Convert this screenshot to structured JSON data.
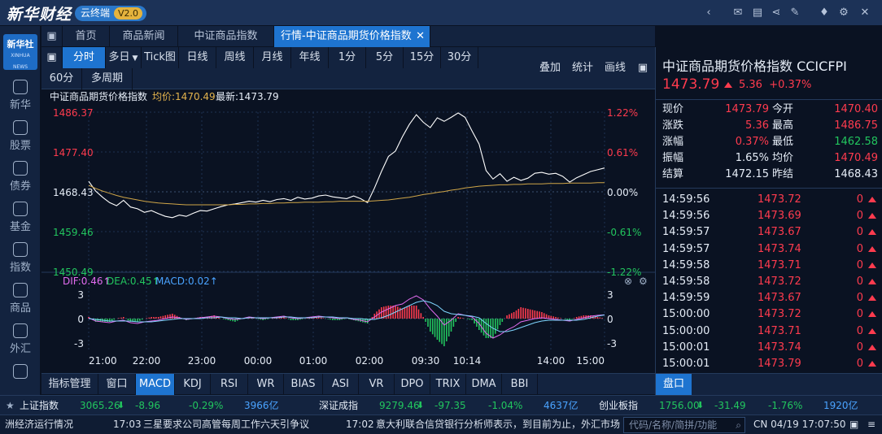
{
  "app": {
    "logo": "新华财经",
    "cloud_label": "云终端",
    "version": "V2.0"
  },
  "titlebar_icons": [
    "back-icon",
    "mail-icon",
    "chat-icon",
    "share-icon",
    "note-icon",
    "shirt-icon",
    "gear-icon",
    "close-icon"
  ],
  "sidebar": {
    "logo_main": "新华社",
    "logo_sub": "XINHUA NEWS",
    "items": [
      {
        "label": "新华",
        "icon": "xinhua-icon"
      },
      {
        "label": "股票",
        "icon": "stock-icon"
      },
      {
        "label": "债券",
        "icon": "bond-icon"
      },
      {
        "label": "基金",
        "icon": "fund-icon"
      },
      {
        "label": "指数",
        "icon": "index-icon"
      },
      {
        "label": "商品",
        "icon": "commodity-icon"
      },
      {
        "label": "外汇",
        "icon": "forex-icon"
      },
      {
        "label": "",
        "icon": "more-icon"
      }
    ]
  },
  "tabs": [
    {
      "label": "首页"
    },
    {
      "label": "商品新闻"
    },
    {
      "label": "中证商品指数"
    },
    {
      "label": "行情-中证商品期货价格指数"
    }
  ],
  "toolbar": {
    "periods": [
      "分时",
      "多日",
      "Tick图",
      "日线",
      "周线",
      "月线",
      "年线",
      "1分",
      "5分",
      "15分",
      "30分"
    ],
    "periods_row2": [
      "60分",
      "多周期"
    ],
    "right": [
      "叠加",
      "统计",
      "画线"
    ]
  },
  "chart_header": {
    "name": "中证商品期货价格指数",
    "avg_label": "均价:1470.49",
    "latest_label": "最新:1473.79"
  },
  "macd_header": {
    "dif": "DIF:0.46↑",
    "dea": "DEA:0.45↑",
    "macd": "MACD:0.02↑"
  },
  "indicator_tabs": [
    "指标管理",
    "窗口",
    "MACD",
    "KDJ",
    "RSI",
    "WR",
    "BIAS",
    "ASI",
    "VR",
    "DPO",
    "TRIX",
    "DMA",
    "BBI"
  ],
  "chart_data": {
    "type": "line",
    "title": "中证商品期货价格指数",
    "x_ticks": [
      "21:00",
      "22:00",
      "23:00",
      "00:00",
      "01:00",
      "02:00",
      "09:30",
      "10:14",
      "14:00",
      "15:00"
    ],
    "y_left_ticks": [
      "1486.37",
      "1477.40",
      "1468.43",
      "1459.46",
      "1450.49"
    ],
    "y_right_ticks": [
      "1.22%",
      "0.61%",
      "0.00%",
      "-0.61%",
      "-1.22%"
    ],
    "ylim": [
      1450.49,
      1486.37
    ],
    "prev_close": 1468.43,
    "series": [
      {
        "name": "最新",
        "color": "#ffffff",
        "values": [
          1470.8,
          1468.6,
          1467.2,
          1466.0,
          1465.3,
          1466.5,
          1465.0,
          1464.6,
          1463.8,
          1464.2,
          1463.5,
          1462.9,
          1462.6,
          1463.2,
          1462.9,
          1463.6,
          1464.2,
          1464.1,
          1464.6,
          1465.1,
          1465.5,
          1465.7,
          1466.0,
          1466.3,
          1466.1,
          1466.5,
          1466.2,
          1466.7,
          1466.9,
          1466.5,
          1467.2,
          1466.8,
          1467.0,
          1467.5,
          1467.7,
          1467.3,
          1467.1,
          1466.9,
          1467.5,
          1466.9,
          1466.0,
          1469.3,
          1473.0,
          1476.4,
          1477.6,
          1480.8,
          1483.6,
          1485.8,
          1484.1,
          1482.9,
          1485.1,
          1484.3,
          1485.2,
          1486.2,
          1485.2,
          1482.1,
          1479.2,
          1473.2,
          1471.3,
          1472.5,
          1470.8,
          1471.7,
          1471.0,
          1471.5,
          1472.6,
          1472.8,
          1472.4,
          1472.6,
          1471.9,
          1470.6,
          1471.6,
          1472.3,
          1473.0,
          1473.4,
          1473.79
        ]
      },
      {
        "name": "均价",
        "color": "#d0a648",
        "values": [
          1469.9,
          1469.2,
          1468.6,
          1468.1,
          1467.6,
          1467.2,
          1466.9,
          1466.6,
          1466.3,
          1466.1,
          1465.9,
          1465.8,
          1465.7,
          1465.6,
          1465.5,
          1465.5,
          1465.5,
          1465.5,
          1465.5,
          1465.5,
          1465.5,
          1465.6,
          1465.6,
          1465.7,
          1465.7,
          1465.8,
          1465.8,
          1465.9,
          1465.9,
          1466.0,
          1466.0,
          1466.1,
          1466.1,
          1466.1,
          1466.2,
          1466.2,
          1466.3,
          1466.3,
          1466.3,
          1466.3,
          1466.3,
          1466.4,
          1466.5,
          1466.6,
          1466.8,
          1467.0,
          1467.2,
          1467.5,
          1467.8,
          1468.0,
          1468.3,
          1468.5,
          1468.8,
          1469.0,
          1469.3,
          1469.5,
          1469.7,
          1469.8,
          1469.9,
          1470.0,
          1470.0,
          1470.1,
          1470.1,
          1470.2,
          1470.2,
          1470.2,
          1470.3,
          1470.3,
          1470.3,
          1470.4,
          1470.4,
          1470.4,
          1470.4,
          1470.5,
          1470.49
        ]
      }
    ],
    "macd": {
      "y_ticks": [
        "3",
        "0",
        "-3"
      ],
      "ylim": [
        -3.2,
        3.2
      ],
      "dif": [
        0.1,
        -0.3,
        -0.4,
        -0.5,
        -0.3,
        -0.2,
        -0.5,
        -0.6,
        -0.4,
        -0.3,
        -0.2,
        0.0,
        0.2,
        0.1,
        -0.1,
        0.0,
        0.1,
        0.2,
        0.3,
        0.2,
        0.0,
        -0.1,
        0.0,
        0.2,
        0.1,
        0.0,
        0.1,
        0.2,
        0.3,
        0.1,
        0.0,
        0.1,
        0.2,
        0.3,
        0.2,
        0.1,
        0.0,
        0.1,
        -0.1,
        -0.2,
        -0.4,
        0.2,
        0.8,
        1.2,
        1.6,
        1.8,
        2.4,
        2.8,
        2.3,
        1.2,
        0.3,
        -0.8,
        -0.2,
        0.6,
        0.4,
        0.2,
        -0.6,
        -1.8,
        -2.4,
        -2.0,
        -1.4,
        -1.0,
        -0.4,
        -0.2,
        0.0,
        0.1,
        0.0,
        -0.1,
        -0.2,
        -0.3,
        -0.1,
        0.1,
        0.3,
        0.4,
        0.46
      ],
      "dea": [
        0.0,
        -0.1,
        -0.2,
        -0.3,
        -0.3,
        -0.3,
        -0.3,
        -0.4,
        -0.4,
        -0.4,
        -0.3,
        -0.2,
        -0.1,
        0.0,
        0.0,
        0.0,
        0.0,
        0.1,
        0.1,
        0.2,
        0.1,
        0.1,
        0.0,
        0.1,
        0.1,
        0.1,
        0.1,
        0.1,
        0.2,
        0.2,
        0.1,
        0.1,
        0.1,
        0.2,
        0.2,
        0.2,
        0.1,
        0.1,
        0.0,
        0.0,
        -0.1,
        -0.1,
        0.1,
        0.4,
        0.8,
        1.2,
        1.6,
        2.0,
        2.2,
        2.0,
        1.6,
        0.9,
        0.6,
        0.5,
        0.4,
        0.3,
        0.1,
        -0.6,
        -1.2,
        -1.6,
        -1.6,
        -1.4,
        -1.1,
        -0.8,
        -0.5,
        -0.3,
        -0.2,
        -0.2,
        -0.2,
        -0.2,
        -0.2,
        -0.1,
        0.1,
        0.3,
        0.45
      ]
    }
  },
  "quote": {
    "title": "中证商品期货价格指数 CCICFPI",
    "price": "1473.79",
    "change": "5.36",
    "change_pct": "+0.37%",
    "rows": [
      {
        "l1": "现价",
        "v1": "1473.79",
        "l2": "今开",
        "v2": "1470.40",
        "c1": "red",
        "c2": "red"
      },
      {
        "l1": "涨跌",
        "v1": "5.36",
        "l2": "最高",
        "v2": "1486.75",
        "c1": "red",
        "c2": "red"
      },
      {
        "l1": "涨幅",
        "v1": "0.37%",
        "l2": "最低",
        "v2": "1462.58",
        "c1": "red",
        "c2": "green"
      },
      {
        "l1": "振幅",
        "v1": "1.65%",
        "l2": "均价",
        "v2": "1470.49",
        "c1": "white",
        "c2": "red"
      },
      {
        "l1": "结算",
        "v1": "1472.15",
        "l2": "昨结",
        "v2": "1468.43",
        "c1": "white",
        "c2": "white"
      }
    ],
    "ticks": [
      {
        "time": "14:59:56",
        "price": "1473.72",
        "vol": "0"
      },
      {
        "time": "14:59:56",
        "price": "1473.69",
        "vol": "0"
      },
      {
        "time": "14:59:57",
        "price": "1473.67",
        "vol": "0"
      },
      {
        "time": "14:59:57",
        "price": "1473.74",
        "vol": "0"
      },
      {
        "time": "14:59:58",
        "price": "1473.71",
        "vol": "0"
      },
      {
        "time": "14:59:58",
        "price": "1473.72",
        "vol": "0"
      },
      {
        "time": "14:59:59",
        "price": "1473.67",
        "vol": "0"
      },
      {
        "time": "15:00:00",
        "price": "1473.72",
        "vol": "0"
      },
      {
        "time": "15:00:00",
        "price": "1473.71",
        "vol": "0"
      },
      {
        "time": "15:00:01",
        "price": "1473.74",
        "vol": "0"
      },
      {
        "time": "15:00:01",
        "price": "1473.79",
        "vol": "0"
      }
    ],
    "pankou_label": "盘口"
  },
  "indexbar": [
    {
      "name": "上证指数",
      "value": "3065.26",
      "chg": "-8.96",
      "pct": "-0.29%",
      "amt": "3966亿"
    },
    {
      "name": "深证成指",
      "value": "9279.46",
      "chg": "-97.35",
      "pct": "-1.04%",
      "amt": "4637亿"
    },
    {
      "name": "创业板指",
      "value": "1756.00",
      "chg": "-31.49",
      "pct": "-1.76%",
      "amt": "1920亿"
    }
  ],
  "newsbar": {
    "item1_text": "洲经济运行情况",
    "item2_time": "17:03",
    "item2_text": "三星要求公司高管每周工作六天引争议",
    "item3_time": "17:02",
    "item3_text": "意大利联合信贷银行分析师表示，到目前为止，外汇市场",
    "search_placeholder": "代码/名称/简拼/功能",
    "clock": "CN 04/19 17:07:50"
  },
  "colors": {
    "up": "#ff3b4e",
    "down": "#22c55e",
    "accent": "#1e74d0",
    "avg": "#d0a648"
  }
}
